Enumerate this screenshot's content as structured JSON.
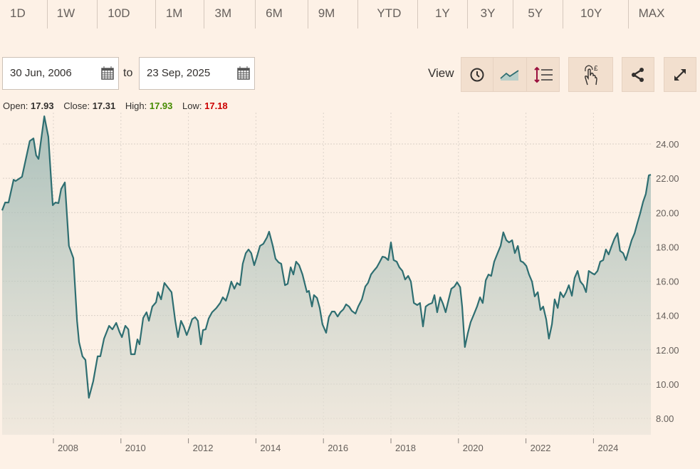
{
  "ranges": [
    "1D",
    "1W",
    "10D",
    "1M",
    "3M",
    "6M",
    "9M",
    "YTD",
    "1Y",
    "3Y",
    "5Y",
    "10Y",
    "MAX"
  ],
  "date_from": "30 Jun, 2006",
  "to_label": "to",
  "date_to": "23 Sep, 2025",
  "view_label": "View",
  "toolbar_icons": [
    "clock-icon",
    "line-chart-icon",
    "axis-scale-icon",
    "interactive-touch-icon",
    "share-icon",
    "expand-icon"
  ],
  "ohlc": {
    "open_label": "Open:",
    "open": "17.93",
    "close_label": "Close:",
    "close": "17.31",
    "high_label": "High:",
    "high": "17.93",
    "low_label": "Low:",
    "low": "17.18"
  },
  "colors": {
    "line": "#2e6e71",
    "high": "#458b00",
    "low": "#cc0000",
    "background": "#fdf1e6"
  },
  "chart_data": {
    "type": "area",
    "xlim": [
      2006.49,
      2025.73
    ],
    "ylim": [
      8,
      24
    ],
    "grid": true,
    "x_ticks": [
      "2008",
      "2010",
      "2012",
      "2014",
      "2016",
      "2018",
      "2020",
      "2022",
      "2024"
    ],
    "y_ticks": [
      "8.00",
      "10.00",
      "12.00",
      "14.00",
      "16.00",
      "18.00",
      "20.00",
      "22.00",
      "24.00"
    ],
    "x": [
      2006.48,
      2006.57,
      2006.67,
      2006.82,
      2006.88,
      2007.07,
      2007.3,
      2007.41,
      2007.49,
      2007.56,
      2007.73,
      2007.85,
      2007.98,
      2008.06,
      2008.15,
      2008.23,
      2008.34,
      2008.46,
      2008.59,
      2008.7,
      2008.76,
      2008.86,
      2008.95,
      2009.05,
      2009.18,
      2009.31,
      2009.39,
      2009.5,
      2009.65,
      2009.75,
      2009.86,
      2009.96,
      2010.03,
      2010.13,
      2010.22,
      2010.3,
      2010.41,
      2010.49,
      2010.55,
      2010.66,
      2010.76,
      2010.83,
      2010.93,
      2011.04,
      2011.1,
      2011.19,
      2011.29,
      2011.42,
      2011.5,
      2011.61,
      2011.69,
      2011.78,
      2011.86,
      2011.95,
      2012.03,
      2012.11,
      2012.2,
      2012.28,
      2012.37,
      2012.43,
      2012.51,
      2012.6,
      2012.7,
      2012.83,
      2012.94,
      2013.02,
      2013.11,
      2013.19,
      2013.27,
      2013.36,
      2013.44,
      2013.53,
      2013.61,
      2013.7,
      2013.78,
      2013.86,
      2013.95,
      2014.03,
      2014.12,
      2014.22,
      2014.33,
      2014.39,
      2014.5,
      2014.58,
      2014.67,
      2014.75,
      2014.86,
      2014.94,
      2015.03,
      2015.11,
      2015.19,
      2015.28,
      2015.38,
      2015.51,
      2015.57,
      2015.66,
      2015.72,
      2015.81,
      2015.89,
      2015.97,
      2016.08,
      2016.16,
      2016.25,
      2016.33,
      2016.42,
      2016.5,
      2016.59,
      2016.67,
      2016.76,
      2016.84,
      2016.95,
      2017.03,
      2017.14,
      2017.24,
      2017.32,
      2017.41,
      2017.49,
      2017.58,
      2017.66,
      2017.75,
      2017.83,
      2017.92,
      2018.0,
      2018.08,
      2018.17,
      2018.25,
      2018.34,
      2018.42,
      2018.51,
      2018.59,
      2018.68,
      2018.78,
      2018.86,
      2018.95,
      2019.03,
      2019.12,
      2019.22,
      2019.29,
      2019.37,
      2019.46,
      2019.54,
      2019.62,
      2019.71,
      2019.79,
      2019.88,
      2019.96,
      2020.05,
      2020.11,
      2020.19,
      2020.28,
      2020.36,
      2020.45,
      2020.55,
      2020.64,
      2020.72,
      2020.81,
      2020.89,
      2020.97,
      2021.06,
      2021.16,
      2021.25,
      2021.33,
      2021.42,
      2021.5,
      2021.59,
      2021.67,
      2021.76,
      2021.84,
      2021.92,
      2022.01,
      2022.09,
      2022.18,
      2022.26,
      2022.35,
      2022.43,
      2022.51,
      2022.6,
      2022.68,
      2022.77,
      2022.85,
      2022.94,
      2023.02,
      2023.11,
      2023.19,
      2023.27,
      2023.36,
      2023.44,
      2023.53,
      2023.61,
      2023.7,
      2023.78,
      2023.86,
      2023.95,
      2024.03,
      2024.12,
      2024.2,
      2024.29,
      2024.37,
      2024.45,
      2024.54,
      2024.62,
      2024.71,
      2024.79,
      2024.88,
      2024.96,
      2025.05,
      2025.13,
      2025.22,
      2025.3,
      2025.38,
      2025.47,
      2025.55,
      2025.64,
      2025.7
    ],
    "values": [
      20.13,
      20.59,
      20.59,
      21.92,
      21.84,
      22.09,
      24.17,
      24.33,
      23.34,
      23.13,
      25.62,
      24.42,
      20.43,
      20.59,
      20.55,
      21.38,
      21.76,
      18.06,
      17.35,
      13.69,
      12.45,
      11.62,
      11.41,
      9.2,
      10.16,
      11.62,
      11.62,
      12.65,
      13.4,
      13.19,
      13.57,
      13.03,
      12.74,
      13.4,
      13.19,
      11.74,
      11.74,
      12.61,
      12.32,
      13.86,
      14.19,
      13.69,
      14.52,
      14.77,
      15.36,
      14.94,
      15.9,
      15.56,
      15.36,
      13.69,
      12.74,
      13.69,
      13.36,
      12.86,
      13.28,
      13.78,
      13.9,
      13.69,
      12.32,
      13.15,
      13.19,
      13.82,
      14.19,
      14.44,
      14.73,
      15.06,
      14.86,
      15.36,
      15.98,
      15.56,
      15.9,
      15.77,
      17.02,
      17.64,
      17.85,
      17.64,
      16.93,
      17.43,
      18.06,
      18.18,
      18.56,
      18.89,
      18.06,
      17.31,
      17.1,
      17.02,
      15.77,
      15.85,
      16.81,
      16.39,
      17.14,
      16.93,
      16.39,
      15.36,
      15.44,
      14.52,
      15.19,
      15.02,
      14.44,
      13.49,
      12.99,
      13.9,
      14.23,
      14.23,
      13.94,
      14.19,
      14.36,
      14.65,
      14.52,
      14.27,
      14.11,
      14.52,
      14.94,
      15.69,
      15.9,
      16.39,
      16.6,
      16.81,
      17.1,
      17.43,
      17.39,
      17.23,
      18.26,
      17.23,
      17.14,
      16.81,
      16.6,
      16.1,
      16.31,
      15.98,
      14.73,
      14.61,
      14.73,
      13.36,
      14.52,
      14.65,
      14.73,
      15.19,
      14.19,
      15.06,
      14.69,
      14.19,
      14.94,
      15.56,
      15.69,
      15.94,
      15.65,
      14.52,
      12.16,
      12.99,
      13.61,
      14.03,
      14.52,
      15.06,
      14.73,
      16.06,
      16.39,
      16.31,
      17.14,
      17.64,
      18.06,
      18.85,
      18.39,
      18.26,
      18.39,
      17.64,
      18.06,
      17.18,
      17.1,
      16.89,
      16.39,
      15.98,
      15.11,
      15.36,
      14.32,
      14.52,
      13.78,
      12.65,
      13.49,
      14.94,
      14.44,
      15.36,
      15.06,
      15.36,
      15.77,
      15.15,
      16.19,
      16.6,
      15.98,
      15.77,
      15.36,
      16.6,
      16.48,
      16.39,
      16.6,
      17.14,
      17.23,
      17.85,
      17.56,
      18.06,
      18.47,
      18.8,
      17.77,
      17.64,
      17.23,
      17.85,
      18.39,
      18.8,
      19.39,
      19.93,
      20.63,
      21.09,
      22.17,
      22.21
    ]
  }
}
